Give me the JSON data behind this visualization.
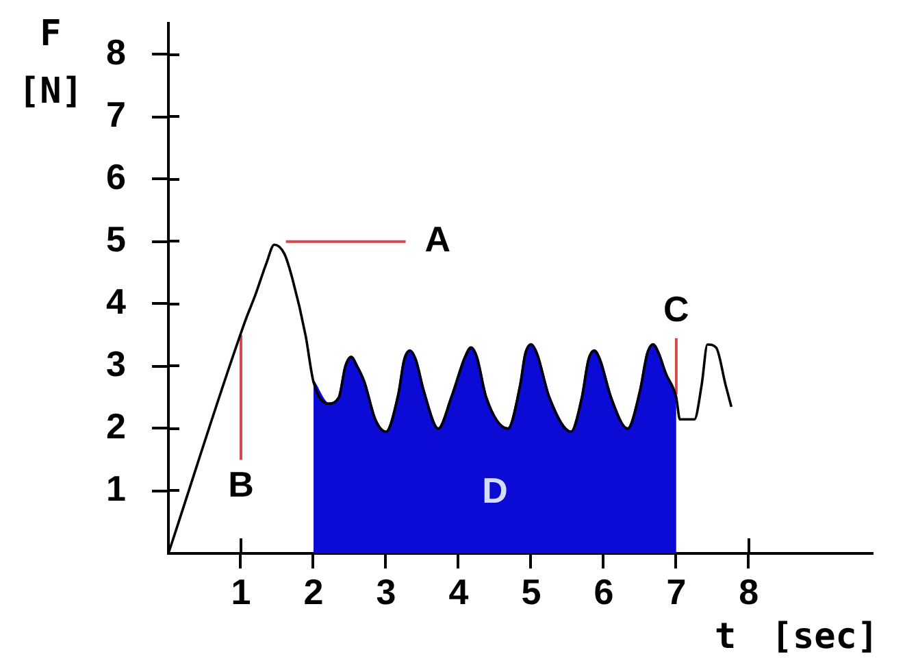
{
  "chart_data": {
    "type": "line",
    "xlabel": "t [sec]",
    "ylabel": "F [N]",
    "xlim": [
      0,
      9.7
    ],
    "ylim": [
      0,
      8.5
    ],
    "xticks": [
      1,
      2,
      3,
      4,
      5,
      6,
      7,
      8
    ],
    "yticks": [
      1,
      2,
      3,
      4,
      5,
      6,
      7,
      8
    ],
    "grid": false,
    "legend": false,
    "marker": "none",
    "series": [
      {
        "color": "#000000",
        "x": [
          0,
          1.05,
          1.2,
          1.35,
          1.46,
          1.6,
          1.71,
          1.89,
          2.0,
          2.2,
          2.35,
          2.44,
          2.52,
          2.6,
          2.7,
          2.85,
          3.0,
          3.17,
          3.25,
          3.33,
          3.41,
          3.52,
          3.72,
          3.9,
          4.09,
          4.17,
          4.25,
          4.38,
          4.68,
          4.85,
          4.92,
          5.0,
          5.08,
          5.25,
          5.55,
          5.7,
          5.79,
          5.87,
          5.95,
          6.1,
          6.33,
          6.5,
          6.6,
          6.68,
          6.76,
          6.85,
          7.0,
          7.05,
          7.25,
          7.35,
          7.43,
          7.55,
          7.68,
          7.76
        ],
        "values": [
          0,
          3.7,
          4.15,
          4.65,
          4.95,
          4.8,
          4.4,
          3.5,
          2.75,
          2.4,
          2.5,
          3.0,
          3.15,
          3.0,
          2.75,
          2.15,
          1.95,
          2.55,
          3.1,
          3.25,
          3.1,
          2.6,
          2.0,
          2.5,
          3.15,
          3.3,
          3.15,
          2.5,
          2.0,
          2.7,
          3.2,
          3.35,
          3.2,
          2.5,
          1.95,
          2.5,
          3.1,
          3.25,
          3.1,
          2.5,
          2.0,
          2.6,
          3.2,
          3.35,
          3.2,
          2.9,
          2.5,
          2.15,
          2.15,
          2.7,
          3.35,
          3.3,
          2.7,
          2.35
        ]
      },
      {
        "type": "area",
        "color": "#0b0bd5",
        "x": [
          2.0,
          2.2,
          2.35,
          2.44,
          2.52,
          2.6,
          2.7,
          2.85,
          3.0,
          3.17,
          3.25,
          3.33,
          3.41,
          3.52,
          3.72,
          3.9,
          4.09,
          4.17,
          4.25,
          4.38,
          4.68,
          4.85,
          4.92,
          5.0,
          5.08,
          5.25,
          5.55,
          5.7,
          5.79,
          5.87,
          5.95,
          6.1,
          6.33,
          6.5,
          6.6,
          6.68,
          6.76,
          6.85,
          7.0
        ],
        "values": [
          2.75,
          2.4,
          2.5,
          3.0,
          3.15,
          3.0,
          2.75,
          2.15,
          1.95,
          2.55,
          3.1,
          3.25,
          3.1,
          2.6,
          2.0,
          2.5,
          3.15,
          3.3,
          3.15,
          2.5,
          2.0,
          2.7,
          3.2,
          3.35,
          3.2,
          2.5,
          1.95,
          2.5,
          3.1,
          3.25,
          3.1,
          2.5,
          2.0,
          2.6,
          3.2,
          3.35,
          3.2,
          2.9,
          2.5
        ]
      },
      {
        "color": "#d24b4b",
        "x": [
          1.62,
          3.27
        ],
        "values": [
          5,
          5
        ]
      },
      {
        "color": "#d24b4b",
        "x": [
          1,
          1
        ],
        "values": [
          1.5,
          3.5
        ]
      },
      {
        "color": "#d24b4b",
        "x": [
          7,
          7
        ],
        "values": [
          2.55,
          3.45
        ]
      }
    ],
    "annotations": [
      "A",
      "B",
      "C",
      "D"
    ]
  }
}
